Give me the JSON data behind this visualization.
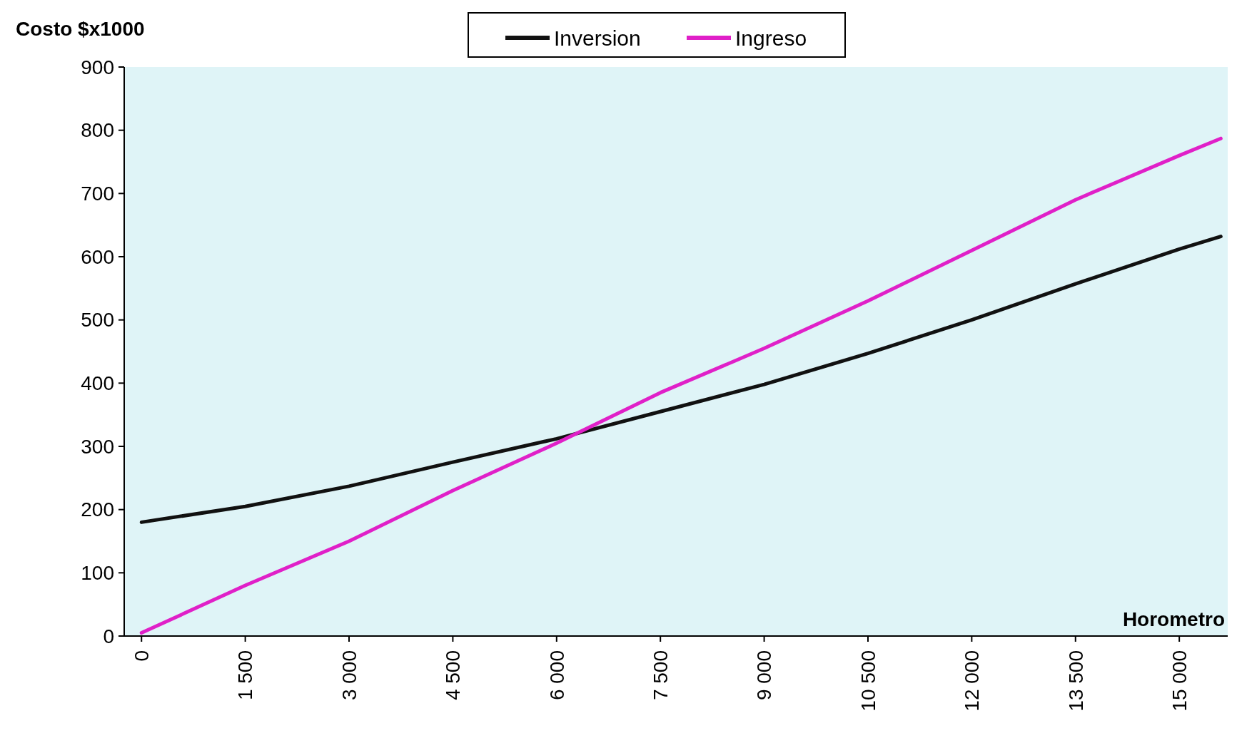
{
  "chart_data": {
    "type": "line",
    "xlabel": "Horometro",
    "ylabel": "Costo $x1000",
    "xlim": [
      -250,
      15700
    ],
    "xticks": [
      {
        "value": 0,
        "label": "0"
      },
      {
        "value": 1500,
        "label": "1 500"
      },
      {
        "value": 3000,
        "label": "3 000"
      },
      {
        "value": 4500,
        "label": "4 500"
      },
      {
        "value": 6000,
        "label": "6 000"
      },
      {
        "value": 7500,
        "label": "7 500"
      },
      {
        "value": 9000,
        "label": "9 000"
      },
      {
        "value": 10500,
        "label": "10 500"
      },
      {
        "value": 12000,
        "label": "12 000"
      },
      {
        "value": 13500,
        "label": "13 500"
      },
      {
        "value": 15000,
        "label": "15 000"
      }
    ],
    "ylim": [
      0,
      900
    ],
    "yticks": [
      0,
      100,
      200,
      300,
      400,
      500,
      600,
      700,
      800,
      900
    ],
    "x": [
      0,
      1500,
      3000,
      4500,
      6000,
      7500,
      9000,
      10500,
      12000,
      13500,
      15000,
      15600
    ],
    "series": [
      {
        "name": "Inversion",
        "color": "#111111",
        "values": [
          180,
          205,
          237,
          275,
          312,
          355,
          398,
          447,
          500,
          557,
          612,
          632
        ]
      },
      {
        "name": "Ingreso",
        "color": "#e020c8",
        "values": [
          5,
          80,
          150,
          230,
          305,
          385,
          455,
          530,
          610,
          690,
          760,
          787
        ]
      }
    ],
    "grid": false,
    "legend": "top",
    "marker": "none",
    "line_style": "solid"
  }
}
